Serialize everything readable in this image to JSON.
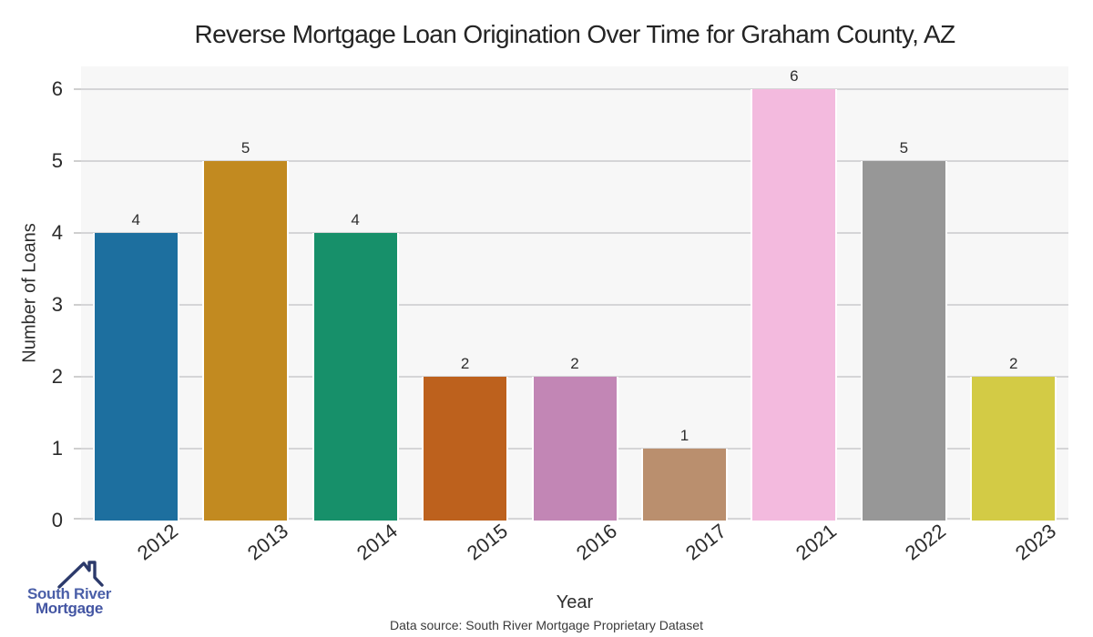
{
  "caption": "Data source: South River Mortgage Proprietary Dataset",
  "logo": {
    "line1": "South River",
    "line2": "Mortgage",
    "roof_icon_color": "#2c3a6b",
    "line1_color": "#4a5fa8",
    "line2_color": "#4456a3"
  },
  "chart_data": {
    "type": "bar",
    "title": "Reverse Mortgage Loan Origination Over Time for Graham County, AZ",
    "xlabel": "Year",
    "ylabel": "Number of Loans",
    "categories": [
      "2012",
      "2013",
      "2014",
      "2015",
      "2016",
      "2017",
      "2021",
      "2022",
      "2023"
    ],
    "values": [
      4,
      5,
      4,
      2,
      2,
      1,
      6,
      5,
      2
    ],
    "bar_value_labels": [
      "4",
      "5",
      "4",
      "2",
      "2",
      "1",
      "6",
      "5",
      "2"
    ],
    "bar_colors": [
      "#1d6f9f",
      "#c28a20",
      "#17906a",
      "#bd611d",
      "#c286b5",
      "#ba8f6e",
      "#f3bade",
      "#979797",
      "#d3cb45"
    ],
    "yticks": [
      0,
      1,
      2,
      3,
      4,
      5,
      6
    ],
    "ylim": [
      0,
      6.31
    ],
    "grid": "horizontal-major",
    "legend": "none",
    "plot_background_color": "#f7f7f7",
    "grid_color": "#d5d5d7",
    "tick_mark_color": "#cfcfcf",
    "bar_edge_color": "#ffffff"
  }
}
